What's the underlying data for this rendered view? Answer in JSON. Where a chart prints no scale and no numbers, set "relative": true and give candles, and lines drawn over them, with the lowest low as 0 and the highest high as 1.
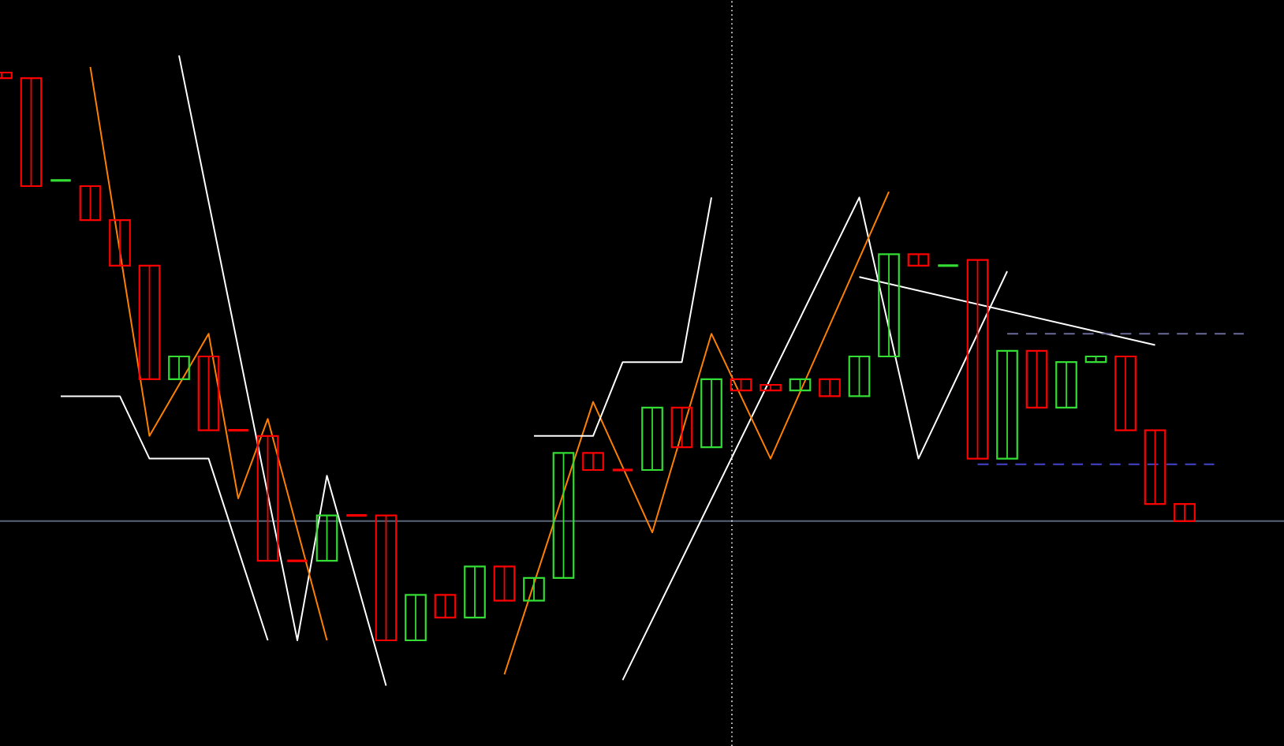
{
  "chart_data": {
    "type": "candlestick",
    "relative": true,
    "categories": [
      null,
      null,
      null,
      null,
      null,
      null,
      null,
      null,
      null,
      null,
      null,
      null,
      null,
      null,
      null,
      null,
      null,
      null,
      null,
      null,
      null,
      null,
      null,
      null,
      null,
      null,
      null,
      null,
      null,
      null,
      null,
      null,
      null,
      null,
      null,
      null,
      null,
      null,
      null,
      null,
      null,
      null,
      null
    ],
    "ohlc": [
      [
        1.0,
        1.0,
        0.99,
        0.99
      ],
      [
        0.99,
        0.99,
        0.8,
        0.8
      ],
      [
        0.81,
        0.81,
        0.81,
        0.81
      ],
      [
        0.8,
        0.8,
        0.74,
        0.74
      ],
      [
        0.74,
        0.74,
        0.66,
        0.66
      ],
      [
        0.66,
        0.66,
        0.46,
        0.46
      ],
      [
        0.46,
        0.5,
        0.46,
        0.5
      ],
      [
        0.5,
        0.5,
        0.37,
        0.37
      ],
      [
        0.37,
        0.37,
        0.37,
        0.37
      ],
      [
        0.36,
        0.36,
        0.14,
        0.14
      ],
      [
        0.14,
        0.14,
        0.14,
        0.14
      ],
      [
        0.14,
        0.22,
        0.14,
        0.22
      ],
      [
        0.22,
        0.22,
        0.22,
        0.22
      ],
      [
        0.22,
        0.22,
        0.0,
        0.0
      ],
      [
        0.0,
        0.08,
        0.0,
        0.08
      ],
      [
        0.08,
        0.08,
        0.04,
        0.04
      ],
      [
        0.04,
        0.13,
        0.04,
        0.13
      ],
      [
        0.13,
        0.13,
        0.07,
        0.07
      ],
      [
        0.07,
        0.11,
        0.07,
        0.11
      ],
      [
        0.11,
        0.33,
        0.11,
        0.33
      ],
      [
        0.33,
        0.33,
        0.3,
        0.3
      ],
      [
        0.3,
        0.3,
        0.3,
        0.3
      ],
      [
        0.3,
        0.41,
        0.3,
        0.41
      ],
      [
        0.41,
        0.41,
        0.34,
        0.34
      ],
      [
        0.34,
        0.46,
        0.34,
        0.46
      ],
      [
        0.46,
        0.46,
        0.44,
        0.44
      ],
      [
        0.45,
        0.45,
        0.44,
        0.44
      ],
      [
        0.44,
        0.46,
        0.44,
        0.46
      ],
      [
        0.46,
        0.46,
        0.43,
        0.43
      ],
      [
        0.43,
        0.5,
        0.43,
        0.5
      ],
      [
        0.5,
        0.68,
        0.5,
        0.68
      ],
      [
        0.68,
        0.68,
        0.66,
        0.66
      ],
      [
        0.66,
        0.66,
        0.66,
        0.66
      ],
      [
        0.67,
        0.67,
        0.32,
        0.32
      ],
      [
        0.32,
        0.51,
        0.32,
        0.51
      ],
      [
        0.51,
        0.51,
        0.41,
        0.41
      ],
      [
        0.41,
        0.49,
        0.41,
        0.49
      ],
      [
        0.49,
        0.5,
        0.49,
        0.5
      ],
      [
        0.5,
        0.5,
        0.37,
        0.37
      ],
      [
        0.37,
        0.37,
        0.24,
        0.24
      ],
      [
        0.24,
        0.24,
        0.21,
        0.21
      ],
      null,
      null
    ],
    "colors": [
      "#ff0000",
      "#ff0000",
      "#33dd33",
      "#ff0000",
      "#ff0000",
      "#ff0000",
      "#33dd33",
      "#ff0000",
      "#ff0000",
      "#ff0000",
      "#ff0000",
      "#33dd33",
      "#ff0000",
      "#ff0000",
      "#33dd33",
      "#ff0000",
      "#33dd33",
      "#ff0000",
      "#33dd33",
      "#33dd33",
      "#ff0000",
      "#ff0000",
      "#33dd33",
      "#ff0000",
      "#33dd33",
      "#ff0000",
      "#ff0000",
      "#33dd33",
      "#ff0000",
      "#33dd33",
      "#33dd33",
      "#ff0000",
      "#33dd33",
      "#ff0000",
      "#33dd33",
      "#ff0000",
      "#33dd33",
      "#33dd33",
      "#ff0000",
      "#ff0000",
      "#ff0000",
      null,
      null
    ],
    "series": [
      {
        "type": "line",
        "color": "#ffffff",
        "values": [
          null,
          null,
          null,
          null,
          null,
          null,
          1.03,
          null,
          null,
          null,
          0.0,
          0.29,
          null,
          -0.08,
          null,
          null,
          null,
          null,
          null,
          null,
          null,
          null,
          null,
          null,
          null,
          null,
          null,
          null,
          null,
          null,
          null,
          null,
          null,
          null,
          null,
          null,
          null,
          null,
          null,
          null,
          null,
          null,
          null
        ]
      },
      {
        "type": "line",
        "color": "#ffffff",
        "values": [
          null,
          null,
          null,
          null,
          null,
          null,
          null,
          null,
          null,
          null,
          null,
          null,
          null,
          null,
          null,
          null,
          null,
          null,
          null,
          null,
          null,
          -0.07,
          null,
          null,
          null,
          null,
          null,
          null,
          null,
          0.78,
          null,
          0.32,
          null,
          null,
          0.65,
          null,
          null,
          null,
          null,
          null,
          null,
          null,
          null
        ]
      },
      {
        "type": "line",
        "color": "#ff8000",
        "values": [
          null,
          null,
          null,
          1.01,
          null,
          0.36,
          null,
          0.54,
          0.25,
          0.39,
          null,
          0.0,
          null,
          null,
          null,
          null,
          null,
          null,
          null,
          null,
          null,
          null,
          null,
          null,
          null,
          null,
          null,
          null,
          null,
          null,
          null,
          null,
          null,
          null,
          null,
          null,
          null,
          null,
          null,
          null,
          null,
          null,
          null
        ]
      },
      {
        "type": "line",
        "color": "#ff8000",
        "values": [
          null,
          null,
          null,
          null,
          null,
          null,
          null,
          null,
          null,
          null,
          null,
          null,
          null,
          null,
          null,
          null,
          null,
          -0.06,
          null,
          null,
          0.42,
          null,
          0.19,
          null,
          0.54,
          null,
          0.32,
          null,
          null,
          null,
          0.79,
          null,
          null,
          null,
          null,
          null,
          null,
          null,
          null,
          null,
          null,
          null,
          null
        ]
      },
      {
        "type": "line",
        "color": "#ffffff",
        "values": [
          null,
          null,
          0.43,
          null,
          0.43,
          0.32,
          null,
          0.32,
          null,
          0.0,
          null,
          null,
          null,
          null,
          null,
          null,
          null,
          null,
          null,
          null,
          null,
          null,
          null,
          null,
          null,
          null,
          null,
          null,
          null,
          null,
          null,
          null,
          null,
          null,
          null,
          null,
          null,
          null,
          null,
          null,
          null,
          null,
          null
        ]
      },
      {
        "type": "line",
        "color": "#ffffff",
        "values": [
          null,
          null,
          null,
          null,
          null,
          null,
          null,
          null,
          null,
          null,
          null,
          null,
          null,
          null,
          null,
          null,
          null,
          null,
          0.36,
          null,
          0.36,
          0.49,
          null,
          0.49,
          0.78,
          null,
          null,
          null,
          null,
          null,
          null,
          null,
          null,
          null,
          null,
          null,
          null,
          null,
          null,
          null,
          null,
          null,
          null
        ]
      },
      {
        "type": "line",
        "color": "#ffffff",
        "values": [
          null,
          null,
          null,
          null,
          null,
          null,
          null,
          null,
          null,
          null,
          null,
          null,
          null,
          null,
          null,
          null,
          null,
          null,
          null,
          null,
          null,
          null,
          null,
          null,
          null,
          null,
          null,
          null,
          null,
          0.64,
          null,
          null,
          null,
          null,
          null,
          null,
          null,
          null,
          null,
          0.52,
          null,
          null,
          null
        ]
      },
      {
        "type": "line",
        "color": "#6a6a9a",
        "line_style": "dashed",
        "values": [
          null,
          null,
          null,
          null,
          null,
          null,
          null,
          null,
          null,
          null,
          null,
          null,
          null,
          null,
          null,
          null,
          null,
          null,
          null,
          null,
          null,
          null,
          null,
          null,
          null,
          null,
          null,
          null,
          null,
          null,
          null,
          null,
          null,
          null,
          0.54,
          null,
          null,
          null,
          null,
          null,
          null,
          null,
          0.54
        ]
      },
      {
        "type": "line",
        "color": "#4444cc",
        "line_style": "dashed",
        "values": [
          null,
          null,
          null,
          null,
          null,
          null,
          null,
          null,
          null,
          null,
          null,
          null,
          null,
          null,
          null,
          null,
          null,
          null,
          null,
          null,
          null,
          null,
          null,
          null,
          null,
          null,
          null,
          null,
          null,
          null,
          null,
          null,
          null,
          0.31,
          null,
          null,
          null,
          null,
          null,
          null,
          null,
          0.31,
          null
        ]
      }
    ],
    "ref_lines": [
      {
        "axis": "y",
        "value": 0.21,
        "color": "#5a6478"
      }
    ]
  }
}
